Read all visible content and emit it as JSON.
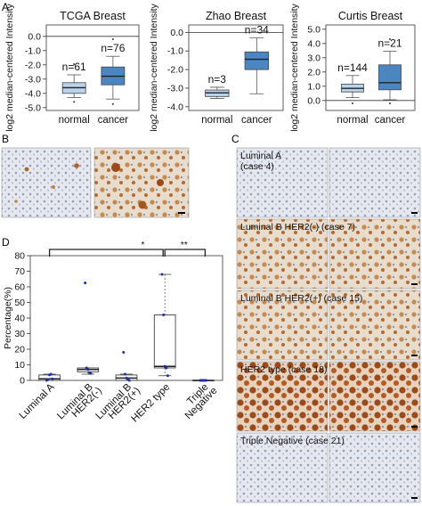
{
  "panel_labels": {
    "a": "A",
    "b": "B",
    "c": "C",
    "d": "D"
  },
  "chart_data": [
    {
      "type": "box",
      "title": "TCGA Breast",
      "ylabel": "log2 median-centered Intensity",
      "ylim": [
        -5.2,
        0.8
      ],
      "yticks": [
        "0.0",
        "-1.0",
        "-2.0",
        "-3.0",
        "-4.0",
        "-5.0"
      ],
      "ytick_values": [
        0,
        -1,
        -2,
        -3,
        -4,
        -5
      ],
      "reference_line": 0,
      "categories": [
        "normal",
        "cancer"
      ],
      "n_labels": [
        "n=61",
        "n=76"
      ],
      "boxes": [
        {
          "min": -4.3,
          "q1": -4.0,
          "median": -3.6,
          "q3": -3.25,
          "max": -2.7,
          "outliers": [
            -1.95,
            -4.6
          ],
          "color": "#b9d3ec"
        },
        {
          "min": -4.4,
          "q1": -3.4,
          "median": -2.8,
          "q3": -2.15,
          "max": -1.4,
          "outliers": [
            -0.2,
            -4.75
          ],
          "color": "#4b86c2"
        }
      ]
    },
    {
      "type": "box",
      "title": "Zhao Breast",
      "ylabel": "log2 median-centered Intensity",
      "ylim": [
        -4.2,
        0.4
      ],
      "yticks": [
        "0.0",
        "-1.0",
        "-2.0",
        "-3.0",
        "-4.0"
      ],
      "ytick_values": [
        0,
        -1,
        -2,
        -3,
        -4
      ],
      "reference_line": 0,
      "categories": [
        "normal",
        "cancer"
      ],
      "n_labels": [
        "n=3",
        "n=34"
      ],
      "boxes": [
        {
          "min": -3.55,
          "q1": -3.45,
          "median": -3.25,
          "q3": -3.1,
          "max": -2.95,
          "outliers": [],
          "color": "#b9d3ec"
        },
        {
          "min": -3.3,
          "q1": -2.0,
          "median": -1.45,
          "q3": -1.05,
          "max": -0.3,
          "outliers": [],
          "color": "#4b86c2"
        }
      ]
    },
    {
      "type": "box",
      "title": "Curtis Breast",
      "ylabel": "log2 median-centered Intensity",
      "ylim": [
        -0.7,
        5.3
      ],
      "yticks": [
        "5.0",
        "4.0",
        "3.0",
        "2.0",
        "1.0",
        "0.0"
      ],
      "ytick_values": [
        5,
        4,
        3,
        2,
        1,
        0
      ],
      "reference_line": 0,
      "categories": [
        "normal",
        "cancer"
      ],
      "n_labels": [
        "n=144",
        "n=21"
      ],
      "boxes": [
        {
          "min": 0.2,
          "q1": 0.6,
          "median": 0.85,
          "q3": 1.15,
          "max": 1.75,
          "outliers": [
            -0.2
          ],
          "color": "#b9d3ec"
        },
        {
          "min": 0.05,
          "q1": 0.75,
          "median": 1.25,
          "q3": 2.5,
          "max": 3.45,
          "outliers": [
            4.3,
            -0.2
          ],
          "color": "#4b86c2"
        }
      ]
    },
    {
      "type": "box",
      "ylabel": "Percentage(%)",
      "ylim": [
        0,
        80
      ],
      "yticks": [
        "0",
        "10",
        "20",
        "30",
        "40",
        "50",
        "60",
        "70",
        "80"
      ],
      "ytick_values": [
        0,
        10,
        20,
        30,
        40,
        50,
        60,
        70,
        80
      ],
      "categories": [
        [
          "Luminal A"
        ],
        [
          "Luminal B",
          "HER2(-)"
        ],
        [
          "Luminal B",
          "HER2(+)"
        ],
        [
          "HER2 type"
        ],
        [
          "Triple",
          "Negative"
        ]
      ],
      "boxes": [
        {
          "min": 0,
          "q1": 0,
          "median": 1,
          "q3": 3.5,
          "max": 4,
          "points": [
            0,
            0.5,
            3.5,
            4,
            1
          ],
          "color": "#ffffff"
        },
        {
          "min": 4,
          "q1": 5.5,
          "median": 7,
          "q3": 8,
          "max": 8,
          "points": [
            62.5,
            8,
            7,
            5,
            4.5
          ],
          "color": "#ffffff"
        },
        {
          "min": 0,
          "q1": 0,
          "median": 1.5,
          "q3": 3.5,
          "max": 4,
          "points": [
            18,
            4,
            1.5,
            0.5,
            0
          ],
          "color": "#ffffff"
        },
        {
          "min": 3,
          "q1": 8,
          "median": 9,
          "q3": 42,
          "max": 68,
          "points": [
            68,
            42,
            9,
            8,
            3
          ],
          "color": "#ffffff"
        },
        {
          "min": 0,
          "q1": 0,
          "median": 0,
          "q3": 0,
          "max": 0,
          "points": [
            0,
            0,
            0,
            0,
            0,
            0
          ],
          "color": "#ffffff"
        }
      ],
      "significance": [
        {
          "label": "*",
          "from": 0,
          "to": 3
        },
        {
          "label": "**",
          "from": 3,
          "to": 4
        }
      ]
    }
  ],
  "case_labels": [
    {
      "text": "Luminal A\n(case 4)"
    },
    {
      "text": "Luminal B  HER2(-)  (case 7)"
    },
    {
      "text": "Luminal B  HER2(+)  (case 15)"
    },
    {
      "text": "HER2 type  (case 18)"
    },
    {
      "text": "Triple Negative  (case 21)"
    }
  ]
}
